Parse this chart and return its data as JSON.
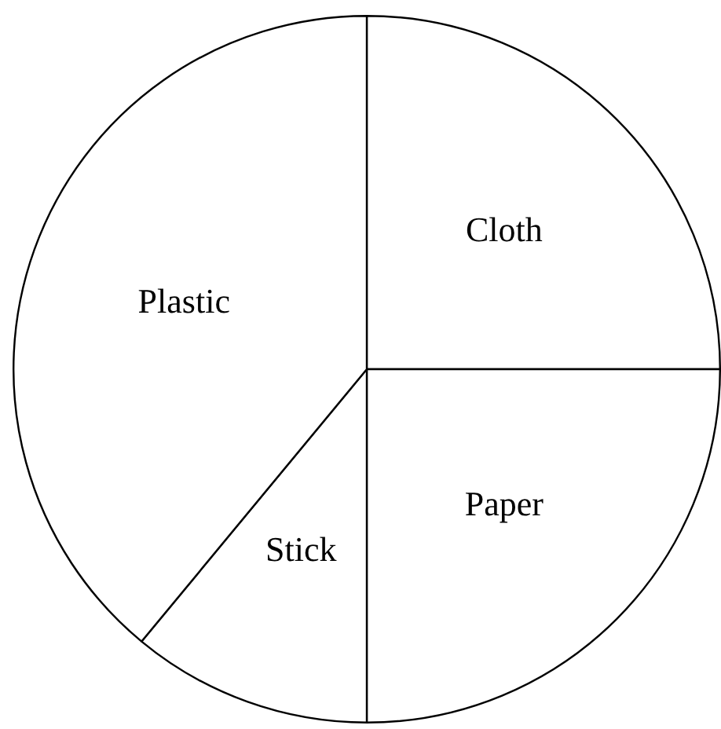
{
  "chart_data": {
    "type": "pie",
    "categories": [
      "Cloth",
      "Paper",
      "Stick",
      "Plastic"
    ],
    "values": [
      25,
      25,
      11,
      39
    ],
    "colors": [
      "#ffffff",
      "#ffffff",
      "#ffffff",
      "#ffffff"
    ],
    "legend": false
  }
}
